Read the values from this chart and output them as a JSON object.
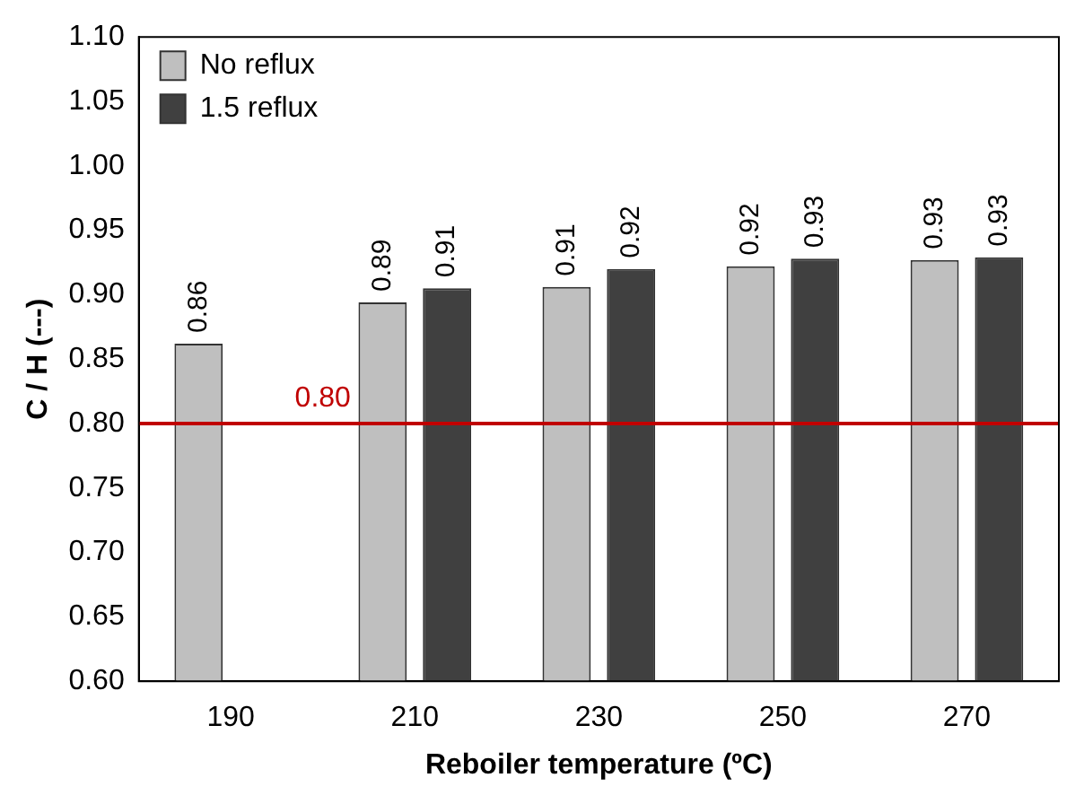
{
  "chart_data": {
    "type": "bar",
    "xlabel": "Reboiler temperature (ºC)",
    "ylabel": "C / H (---)",
    "categories": [
      "190",
      "210",
      "230",
      "250",
      "270"
    ],
    "series": [
      {
        "name": "No reflux",
        "color": "#bfbfbf",
        "values": [
          0.862,
          0.894,
          0.906,
          0.922,
          0.927
        ],
        "value_labels": [
          "0.86",
          "0.89",
          "0.91",
          "0.92",
          "0.93"
        ]
      },
      {
        "name": "1.5 reflux",
        "color": "#404040",
        "values": [
          null,
          0.905,
          0.92,
          0.928,
          0.929
        ],
        "value_labels": [
          null,
          "0.91",
          "0.92",
          "0.93",
          "0.93"
        ]
      }
    ],
    "ylim": [
      0.6,
      1.1
    ],
    "yticks": [
      {
        "value": 0.6,
        "label": "0.60"
      },
      {
        "value": 0.65,
        "label": "0.65"
      },
      {
        "value": 0.7,
        "label": "0.70"
      },
      {
        "value": 0.75,
        "label": "0.75"
      },
      {
        "value": 0.8,
        "label": "0.80"
      },
      {
        "value": 0.85,
        "label": "0.85"
      },
      {
        "value": 0.9,
        "label": "0.90"
      },
      {
        "value": 0.95,
        "label": "0.95"
      },
      {
        "value": 1.0,
        "label": "1.00"
      },
      {
        "value": 1.05,
        "label": "1.05"
      },
      {
        "value": 1.1,
        "label": "1.10"
      }
    ],
    "ref_lines": [
      {
        "axis": "y",
        "value": 0.8,
        "label": "0.80",
        "color": "#c00000"
      }
    ],
    "legend": "top left",
    "grid": false
  }
}
